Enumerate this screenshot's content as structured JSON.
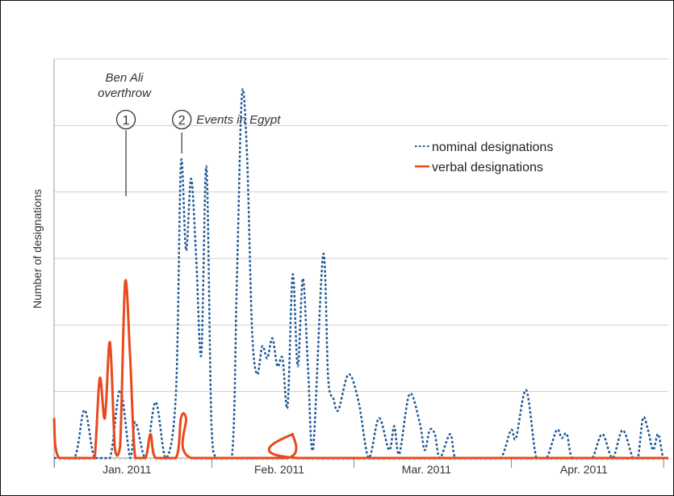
{
  "chart_data": {
    "type": "line",
    "title": "",
    "xlabel": "",
    "ylabel": "Number of designations",
    "x_tick_labels": [
      "Jan. 2011",
      "Feb. 2011",
      "Mar. 2011",
      "Apr. 2011"
    ],
    "grid": "horizontal",
    "legend_position": "top-right",
    "y_tick_labels_shown": false,
    "y_units": "relative (no numeric scale printed)",
    "ylim": [
      0,
      100
    ],
    "series": [
      {
        "name": "nominal designations",
        "color": "#1f5a96",
        "style": "dotted",
        "points": [
          [
            0,
            0
          ],
          [
            4,
            0
          ],
          [
            6,
            12
          ],
          [
            8,
            0
          ],
          [
            11,
            0
          ],
          [
            13,
            17
          ],
          [
            15,
            0
          ],
          [
            16,
            9
          ],
          [
            18,
            0
          ],
          [
            20,
            14
          ],
          [
            22,
            0
          ],
          [
            24,
            16
          ],
          [
            25,
            74
          ],
          [
            26,
            52
          ],
          [
            27,
            70
          ],
          [
            28,
            50
          ],
          [
            29,
            26
          ],
          [
            30,
            73
          ],
          [
            31,
            8
          ],
          [
            32,
            0
          ],
          [
            35,
            0
          ],
          [
            36,
            44
          ],
          [
            37,
            91
          ],
          [
            38,
            76
          ],
          [
            39,
            32
          ],
          [
            40,
            21
          ],
          [
            41,
            28
          ],
          [
            42,
            25
          ],
          [
            43,
            30
          ],
          [
            44,
            23
          ],
          [
            45,
            25
          ],
          [
            46,
            13
          ],
          [
            47,
            46
          ],
          [
            48,
            23
          ],
          [
            49,
            45
          ],
          [
            50,
            23
          ],
          [
            51,
            2
          ],
          [
            53,
            51
          ],
          [
            54,
            20
          ],
          [
            55,
            15
          ],
          [
            56,
            12
          ],
          [
            58,
            21
          ],
          [
            60,
            14
          ],
          [
            62,
            0
          ],
          [
            64,
            10
          ],
          [
            66,
            2
          ],
          [
            67,
            8
          ],
          [
            68,
            1
          ],
          [
            70,
            16
          ],
          [
            72,
            9
          ],
          [
            73,
            2
          ],
          [
            74,
            7
          ],
          [
            75,
            6
          ],
          [
            76,
            0
          ],
          [
            78,
            6
          ],
          [
            79,
            0
          ],
          [
            81,
            0
          ],
          [
            82,
            0
          ],
          [
            85,
            0
          ],
          [
            88,
            0
          ],
          [
            90,
            7
          ],
          [
            91,
            5
          ],
          [
            93,
            17
          ],
          [
            95,
            0
          ],
          [
            97,
            0
          ],
          [
            99,
            7
          ],
          [
            100,
            5
          ],
          [
            101,
            6
          ],
          [
            102,
            0
          ],
          [
            104,
            0
          ],
          [
            106,
            0
          ],
          [
            108,
            6
          ],
          [
            110,
            0
          ],
          [
            112,
            7
          ],
          [
            114,
            0
          ],
          [
            115,
            0
          ],
          [
            116,
            10
          ],
          [
            117,
            7
          ],
          [
            118,
            2
          ],
          [
            119,
            6
          ],
          [
            120,
            0
          ],
          [
            121,
            0
          ]
        ]
      },
      {
        "name": "verbal designations",
        "color": "#e8491d",
        "style": "solid",
        "points": [
          [
            0,
            10
          ],
          [
            1,
            0
          ],
          [
            7,
            0
          ],
          [
            8,
            0
          ],
          [
            9,
            20
          ],
          [
            10,
            10
          ],
          [
            11,
            29
          ],
          [
            12,
            2
          ],
          [
            13,
            3
          ],
          [
            14,
            44
          ],
          [
            15,
            25
          ],
          [
            16,
            0
          ],
          [
            18,
            0
          ],
          [
            19,
            6
          ],
          [
            20,
            0
          ],
          [
            24,
            0
          ],
          [
            25,
            10
          ],
          [
            26,
            10
          ],
          [
            27,
            0
          ],
          [
            46,
            0
          ],
          [
            47,
            6
          ],
          [
            48,
            0
          ],
          [
            121,
            0
          ]
        ]
      }
    ],
    "annotations": [
      {
        "marker": "①",
        "lines": [
          "Ben Ali",
          "overthrow"
        ],
        "x": 14
      },
      {
        "marker": "②",
        "lines": [
          "Events in Egypt"
        ],
        "x": 25
      }
    ]
  }
}
